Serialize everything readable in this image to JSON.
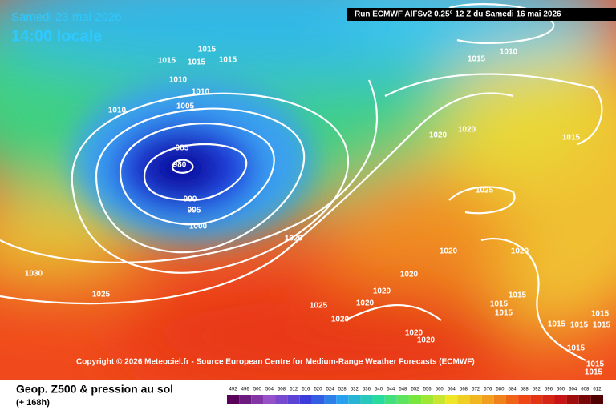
{
  "header": {
    "date": "Samedi 23 mai 2026",
    "time": "14:00 locale",
    "run": "Run ECMWF AIFSv2 0.25° 12 Z du Samedi 16 mai 2026"
  },
  "isobar_labels": [
    1015,
    1015,
    1015,
    1015,
    1010,
    1010,
    1010,
    1005,
    985,
    980,
    990,
    995,
    1000,
    1010,
    1015,
    1020,
    1020,
    1015,
    1025,
    1020,
    1020,
    1020,
    1020,
    1030,
    1025,
    1020,
    1020,
    1025,
    1020,
    1015,
    1015,
    1015,
    1015,
    1015,
    1015,
    1015,
    1020,
    1020,
    1015,
    1015,
    1015
  ],
  "copyright": "Copyright © 2026 Meteociel.fr - Source European Centre for Medium-Range Weather Forecasts (ECMWF)",
  "footer": {
    "title": "Geop. Z500 & pression au sol",
    "lead": "(+ 168h)"
  },
  "colorbar": {
    "ticks": [
      492,
      496,
      500,
      504,
      508,
      512,
      516,
      520,
      524,
      528,
      532,
      536,
      540,
      544,
      548,
      552,
      556,
      560,
      564,
      568,
      572,
      576,
      580,
      584,
      588,
      592,
      596,
      600,
      604,
      608,
      612
    ]
  }
}
